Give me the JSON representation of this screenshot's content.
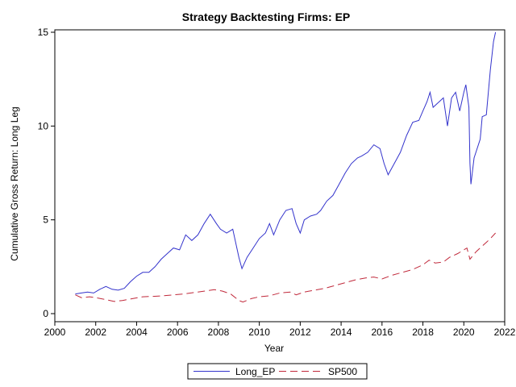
{
  "chart_data": {
    "type": "line",
    "title": "Strategy Backtesting  Firms: EP",
    "xlabel": "Year",
    "ylabel": "Cumulative Gross Return: Long Leg",
    "xlim": [
      2000,
      2022
    ],
    "ylim": [
      0,
      15
    ],
    "x_ticks": [
      "2000",
      "2002",
      "2004",
      "2006",
      "2008",
      "2010",
      "2012",
      "2014",
      "2016",
      "2018",
      "2020",
      "2022"
    ],
    "y_ticks": [
      "0",
      "5",
      "10",
      "15"
    ],
    "grid": false,
    "legend_position": "bottom",
    "series": [
      {
        "name": "Long_EP",
        "color": "#3333cc",
        "dash": "solid",
        "points": [
          [
            2001.0,
            1.05
          ],
          [
            2001.3,
            1.1
          ],
          [
            2001.6,
            1.15
          ],
          [
            2001.9,
            1.1
          ],
          [
            2002.2,
            1.3
          ],
          [
            2002.5,
            1.45
          ],
          [
            2002.8,
            1.3
          ],
          [
            2003.1,
            1.25
          ],
          [
            2003.4,
            1.35
          ],
          [
            2003.7,
            1.7
          ],
          [
            2004.0,
            2.0
          ],
          [
            2004.3,
            2.2
          ],
          [
            2004.6,
            2.2
          ],
          [
            2004.9,
            2.5
          ],
          [
            2005.2,
            2.9
          ],
          [
            2005.5,
            3.2
          ],
          [
            2005.8,
            3.5
          ],
          [
            2006.1,
            3.4
          ],
          [
            2006.4,
            4.2
          ],
          [
            2006.7,
            3.9
          ],
          [
            2007.0,
            4.2
          ],
          [
            2007.3,
            4.8
          ],
          [
            2007.6,
            5.3
          ],
          [
            2007.9,
            4.8
          ],
          [
            2008.1,
            4.5
          ],
          [
            2008.4,
            4.3
          ],
          [
            2008.7,
            4.5
          ],
          [
            2009.0,
            3.0
          ],
          [
            2009.15,
            2.4
          ],
          [
            2009.4,
            3.0
          ],
          [
            2009.7,
            3.5
          ],
          [
            2010.0,
            4.0
          ],
          [
            2010.3,
            4.3
          ],
          [
            2010.5,
            4.8
          ],
          [
            2010.7,
            4.2
          ],
          [
            2011.0,
            5.0
          ],
          [
            2011.3,
            5.5
          ],
          [
            2011.6,
            5.6
          ],
          [
            2011.8,
            4.8
          ],
          [
            2012.0,
            4.3
          ],
          [
            2012.2,
            5.0
          ],
          [
            2012.5,
            5.2
          ],
          [
            2012.8,
            5.3
          ],
          [
            2013.0,
            5.5
          ],
          [
            2013.3,
            6.0
          ],
          [
            2013.6,
            6.3
          ],
          [
            2013.9,
            6.9
          ],
          [
            2014.2,
            7.5
          ],
          [
            2014.5,
            8.0
          ],
          [
            2014.8,
            8.3
          ],
          [
            2015.0,
            8.4
          ],
          [
            2015.3,
            8.6
          ],
          [
            2015.6,
            9.0
          ],
          [
            2015.9,
            8.8
          ],
          [
            2016.1,
            8.0
          ],
          [
            2016.3,
            7.4
          ],
          [
            2016.6,
            8.0
          ],
          [
            2016.9,
            8.6
          ],
          [
            2017.2,
            9.5
          ],
          [
            2017.5,
            10.2
          ],
          [
            2017.8,
            10.3
          ],
          [
            2018.0,
            10.8
          ],
          [
            2018.2,
            11.3
          ],
          [
            2018.35,
            11.8
          ],
          [
            2018.5,
            11.0
          ],
          [
            2018.8,
            11.3
          ],
          [
            2019.0,
            11.5
          ],
          [
            2019.2,
            10.0
          ],
          [
            2019.4,
            11.5
          ],
          [
            2019.6,
            11.8
          ],
          [
            2019.8,
            10.8
          ],
          [
            2020.0,
            11.8
          ],
          [
            2020.1,
            12.2
          ],
          [
            2020.25,
            11.0
          ],
          [
            2020.3,
            8.0
          ],
          [
            2020.35,
            6.9
          ],
          [
            2020.5,
            8.3
          ],
          [
            2020.8,
            9.3
          ],
          [
            2020.9,
            10.5
          ],
          [
            2021.1,
            10.6
          ],
          [
            2021.3,
            13.0
          ],
          [
            2021.45,
            14.5
          ],
          [
            2021.55,
            15.0
          ]
        ]
      },
      {
        "name": "SP500",
        "color": "#c0283a",
        "dash": "dashed",
        "points": [
          [
            2001.0,
            1.0
          ],
          [
            2001.3,
            0.85
          ],
          [
            2001.7,
            0.9
          ],
          [
            2002.0,
            0.85
          ],
          [
            2002.5,
            0.75
          ],
          [
            2002.9,
            0.65
          ],
          [
            2003.3,
            0.7
          ],
          [
            2003.8,
            0.8
          ],
          [
            2004.3,
            0.9
          ],
          [
            2004.8,
            0.92
          ],
          [
            2005.3,
            0.95
          ],
          [
            2005.8,
            1.0
          ],
          [
            2006.3,
            1.05
          ],
          [
            2006.8,
            1.12
          ],
          [
            2007.3,
            1.2
          ],
          [
            2007.8,
            1.28
          ],
          [
            2008.2,
            1.2
          ],
          [
            2008.6,
            1.05
          ],
          [
            2009.0,
            0.7
          ],
          [
            2009.2,
            0.62
          ],
          [
            2009.6,
            0.8
          ],
          [
            2010.0,
            0.9
          ],
          [
            2010.5,
            0.95
          ],
          [
            2011.0,
            1.1
          ],
          [
            2011.5,
            1.15
          ],
          [
            2011.8,
            1.0
          ],
          [
            2012.2,
            1.15
          ],
          [
            2012.7,
            1.25
          ],
          [
            2013.2,
            1.35
          ],
          [
            2013.7,
            1.5
          ],
          [
            2014.2,
            1.65
          ],
          [
            2014.7,
            1.8
          ],
          [
            2015.2,
            1.9
          ],
          [
            2015.6,
            1.95
          ],
          [
            2016.0,
            1.85
          ],
          [
            2016.5,
            2.05
          ],
          [
            2017.0,
            2.2
          ],
          [
            2017.5,
            2.35
          ],
          [
            2018.0,
            2.6
          ],
          [
            2018.3,
            2.85
          ],
          [
            2018.6,
            2.7
          ],
          [
            2019.0,
            2.75
          ],
          [
            2019.3,
            3.0
          ],
          [
            2019.7,
            3.2
          ],
          [
            2020.0,
            3.4
          ],
          [
            2020.15,
            3.5
          ],
          [
            2020.3,
            2.9
          ],
          [
            2020.6,
            3.3
          ],
          [
            2020.9,
            3.6
          ],
          [
            2021.1,
            3.8
          ],
          [
            2021.3,
            4.0
          ],
          [
            2021.55,
            4.3
          ]
        ]
      }
    ]
  }
}
